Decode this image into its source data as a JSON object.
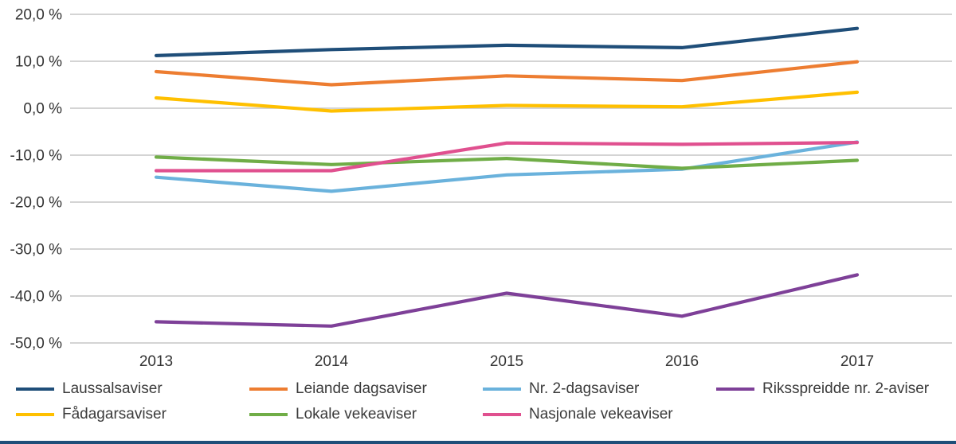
{
  "chart_data": {
    "type": "line",
    "x": [
      "2013",
      "2014",
      "2015",
      "2016",
      "2017"
    ],
    "series": [
      {
        "name": "Laussalsaviser",
        "color": "#1F4E79",
        "values": [
          11.2,
          12.5,
          13.4,
          12.9,
          17.0
        ]
      },
      {
        "name": "Leiande dagsaviser",
        "color": "#ED7D31",
        "values": [
          7.8,
          5.0,
          6.9,
          5.9,
          9.9
        ]
      },
      {
        "name": "Nr. 2-dagsaviser",
        "color": "#6AB2DC",
        "values": [
          -14.7,
          -17.7,
          -14.2,
          -13.0,
          -7.2
        ]
      },
      {
        "name": "Riksspreidde nr. 2-aviser",
        "color": "#7E4098",
        "values": [
          -45.5,
          -46.4,
          -39.4,
          -44.3,
          -35.5
        ]
      },
      {
        "name": "Fådagarsaviser",
        "color": "#FFC000",
        "values": [
          2.2,
          -0.6,
          0.6,
          0.3,
          3.4
        ]
      },
      {
        "name": "Lokale vekeaviser",
        "color": "#70AD47",
        "values": [
          -10.4,
          -12.0,
          -10.7,
          -12.8,
          -11.1
        ]
      },
      {
        "name": "Nasjonale vekeaviser",
        "color": "#E0508F",
        "values": [
          -13.3,
          -13.3,
          -7.4,
          -7.7,
          -7.3
        ]
      }
    ],
    "title": "",
    "xlabel": "",
    "ylabel": "",
    "ylim": [
      -50,
      20
    ],
    "ytick_step": 10,
    "ytick_labels": [
      "20,0 %",
      "10,0 %",
      "0,0 %",
      "-10,0 %",
      "-20,0 %",
      "-30,0 %",
      "-40,0 %",
      "-50,0 %"
    ],
    "grid": true,
    "legend_position": "bottom"
  },
  "style": {
    "grid_color": "#C6C6C6",
    "axis_text_color": "#333333",
    "bottom_bar_color": "#1F4E79"
  }
}
